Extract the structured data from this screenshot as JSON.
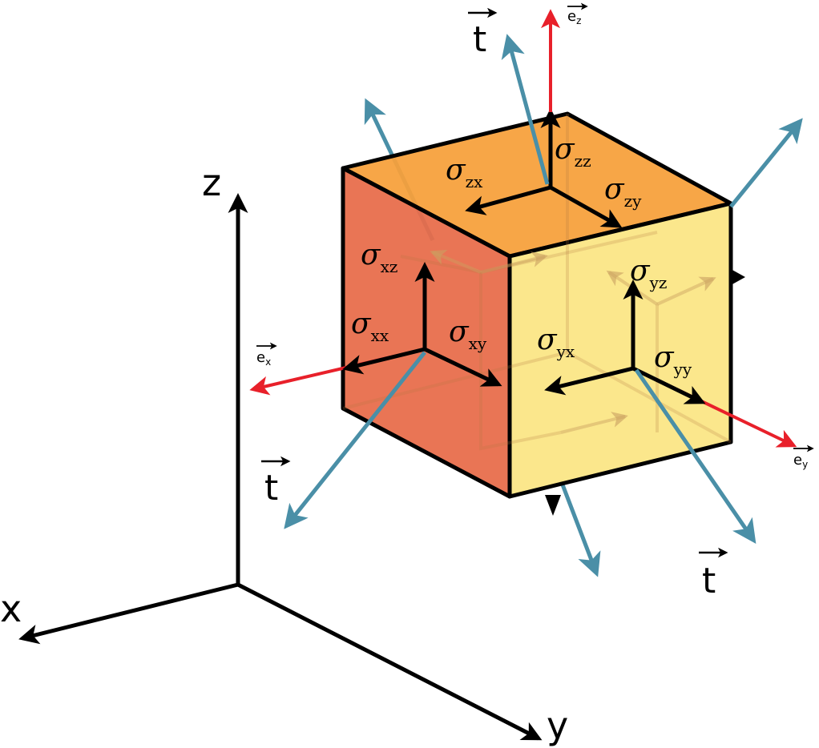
{
  "colors": {
    "face_left": "#e86c4a",
    "face_right": "#fbe685",
    "face_top": "#f7a03c",
    "traction": "#4a8fa7",
    "unit_vector": "#e8202a",
    "stroke": "#000000"
  },
  "axes": {
    "x": "x",
    "y": "y",
    "z": "z"
  },
  "unit_vectors": {
    "ex": {
      "base": "e",
      "sub": "x"
    },
    "ey": {
      "base": "e",
      "sub": "y"
    },
    "ez": {
      "base": "e",
      "sub": "z"
    }
  },
  "traction": {
    "label": "t"
  },
  "stress": {
    "symbol": "σ",
    "zz": "zz",
    "zx": "zx",
    "zy": "zy",
    "xz": "xz",
    "xx": "xx",
    "xy": "xy",
    "yz": "yz",
    "yx": "yx",
    "yy": "yy"
  }
}
